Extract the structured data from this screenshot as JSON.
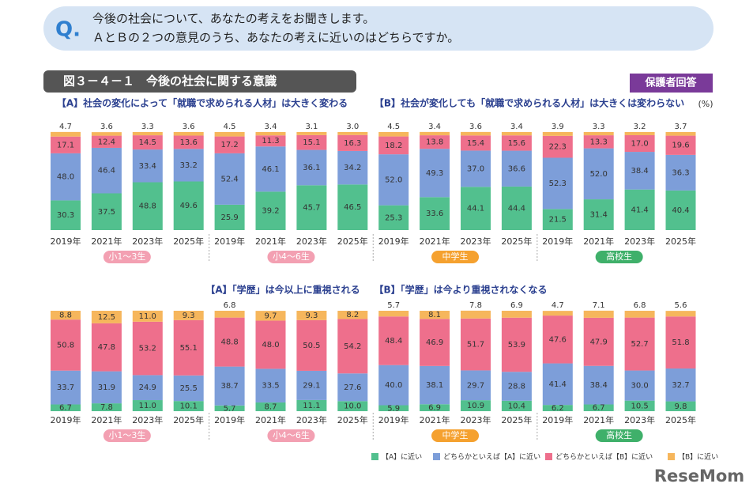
{
  "question": {
    "mark": "Q.",
    "lines": [
      "今後の社会について、あなたの考えをお聞きします。",
      "ＡとＢの２つの意見のうち、あなたの考えに近いのはどちらですか。"
    ]
  },
  "figure_title": "図３－４－１　今後の社会に関する意識",
  "respondent": "保護者回答",
  "unit": "(%)",
  "watermark": "ReseMom",
  "chart_data": [
    {
      "type": "stacked_bar",
      "label_a": "【A】社会の変化によって「就職で求められる人材」は大きく変わる",
      "label_b": "【B】社会が変化しても「就職で求められる人材」は大きくは変わらない",
      "categories": [
        "2019年",
        "2021年",
        "2023年",
        "2025年",
        "2019年",
        "2021年",
        "2023年",
        "2025年",
        "2019年",
        "2021年",
        "2023年",
        "2025年",
        "2019年",
        "2021年",
        "2023年",
        "2025年"
      ],
      "groups": [
        {
          "name": "小1～3生",
          "color": "#f3a0b2"
        },
        {
          "name": "小4～6生",
          "color": "#f3a0b2"
        },
        {
          "name": "中学生",
          "color": "#f5a12f"
        },
        {
          "name": "高校生",
          "color": "#3fb06a"
        }
      ],
      "ylim": [
        0,
        100
      ],
      "series": [
        {
          "name": "【A】に近い",
          "color": "#52c08e",
          "values": [
            30.3,
            37.5,
            48.8,
            49.6,
            25.9,
            39.2,
            45.7,
            46.5,
            25.3,
            33.6,
            44.1,
            44.4,
            21.5,
            31.4,
            41.4,
            40.4
          ],
          "value_labels": [
            "30.3",
            "37.5",
            "48.8",
            "49.6",
            "25.9",
            "39.2",
            "45.7",
            "46.5",
            "25.3",
            "33.6",
            "44.1",
            "44.4",
            "21.5",
            "31.4",
            "41.4",
            "40.4"
          ]
        },
        {
          "name": "どちらかといえば【A】に近い",
          "color": "#7d9ed9",
          "values": [
            48.0,
            46.4,
            33.4,
            33.2,
            52.4,
            46.1,
            36.1,
            34.2,
            52.0,
            49.3,
            37.0,
            36.6,
            52.3,
            52.0,
            38.4,
            36.3
          ],
          "value_labels": [
            "48.0",
            "46.4",
            "33.4",
            "33.2",
            "52.4",
            "46.1",
            "36.1",
            "34.2",
            "52.0",
            "49.3",
            "37.0",
            "36.6",
            "52.3",
            "52.0",
            "38.4",
            "36.3"
          ]
        },
        {
          "name": "どちらかといえば【B】に近い",
          "color": "#ee6f8c",
          "values": [
            17.1,
            12.4,
            14.5,
            13.6,
            17.2,
            11.3,
            15.1,
            16.3,
            18.2,
            13.8,
            15.4,
            15.6,
            22.3,
            13.3,
            17.0,
            19.6
          ],
          "value_labels": [
            "17.1",
            "12.4",
            "14.5",
            "13.6",
            "17.2",
            "11.3",
            "15.1",
            "16.3",
            "18.2",
            "13.8",
            "15.4",
            "15.6",
            "22.3",
            "13.3",
            "17.0",
            "19.6"
          ]
        },
        {
          "name": "【B】に近い",
          "color": "#f6b65c",
          "values": [
            4.7,
            3.6,
            3.3,
            3.6,
            4.5,
            3.4,
            3.1,
            3.0,
            4.5,
            3.4,
            3.6,
            3.4,
            3.9,
            3.3,
            3.2,
            3.7
          ],
          "value_labels": [
            "4.7",
            "3.6",
            "3.3",
            "3.6",
            "4.5",
            "3.4",
            "3.1",
            "3.0",
            "4.5",
            "3.4",
            "3.6",
            "3.4",
            "3.9",
            "3.3",
            "3.2",
            "3.7"
          ]
        }
      ]
    },
    {
      "type": "stacked_bar",
      "label_a": "【A】「学歴」は今以上に重視される",
      "label_b": "【B】「学歴」は今より重視されなくなる",
      "categories": [
        "2019年",
        "2021年",
        "2023年",
        "2025年",
        "2019年",
        "2021年",
        "2023年",
        "2025年",
        "2019年",
        "2021年",
        "2023年",
        "2025年",
        "2019年",
        "2021年",
        "2023年",
        "2025年"
      ],
      "groups": [
        {
          "name": "小1～3生",
          "color": "#f3a0b2"
        },
        {
          "name": "小4～6生",
          "color": "#f3a0b2"
        },
        {
          "name": "中学生",
          "color": "#f5a12f"
        },
        {
          "name": "高校生",
          "color": "#3fb06a"
        }
      ],
      "ylim": [
        0,
        100
      ],
      "series": [
        {
          "name": "【A】に近い",
          "color": "#52c08e",
          "values": [
            6.7,
            7.8,
            11.0,
            10.1,
            5.7,
            8.7,
            11.1,
            10.0,
            5.9,
            6.9,
            10.9,
            10.4,
            6.2,
            6.7,
            10.5,
            9.8
          ],
          "value_labels": [
            "6.7",
            "7.8",
            "11.0",
            "10.1",
            "5.7",
            "8.7",
            "11.1",
            "10.0",
            "5.9",
            "6.9",
            "10.9",
            "10.4",
            "6.2",
            "6.7",
            "10.5",
            "9.8"
          ]
        },
        {
          "name": "どちらかといえば【A】に近い",
          "color": "#7d9ed9",
          "values": [
            33.7,
            31.9,
            24.9,
            25.5,
            38.7,
            33.5,
            29.1,
            27.6,
            40.0,
            38.1,
            29.7,
            28.8,
            41.4,
            38.4,
            30.0,
            32.7
          ],
          "value_labels": [
            "33.7",
            "31.9",
            "24.9",
            "25.5",
            "38.7",
            "33.5",
            "29.1",
            "27.6",
            "40.0",
            "38.1",
            "29.7",
            "28.8",
            "41.4",
            "38.4",
            "30.0",
            "32.7"
          ]
        },
        {
          "name": "どちらかといえば【B】に近い",
          "color": "#ee6f8c",
          "values": [
            50.8,
            47.8,
            53.2,
            55.1,
            48.8,
            48.0,
            50.5,
            54.2,
            48.4,
            46.9,
            51.7,
            53.9,
            47.6,
            47.9,
            52.7,
            51.8
          ],
          "value_labels": [
            "50.8",
            "47.8",
            "53.2",
            "55.1",
            "48.8",
            "48.0",
            "50.5",
            "54.2",
            "48.4",
            "46.9",
            "51.7",
            "53.9",
            "47.6",
            "47.9",
            "52.7",
            "51.8"
          ]
        },
        {
          "name": "【B】に近い",
          "color": "#f6b65c",
          "values": [
            8.8,
            12.5,
            11.0,
            9.3,
            6.8,
            9.7,
            9.3,
            8.2,
            5.7,
            8.1,
            7.8,
            6.9,
            4.7,
            7.1,
            6.8,
            5.6
          ],
          "value_labels": [
            "8.8",
            "12.5",
            "11.0",
            "9.3",
            "6.8",
            "9.7",
            "9.3",
            "8.2",
            "5.7",
            "8.1",
            "7.8",
            "6.9",
            "4.7",
            "7.1",
            "6.8",
            "5.6"
          ]
        }
      ]
    }
  ]
}
